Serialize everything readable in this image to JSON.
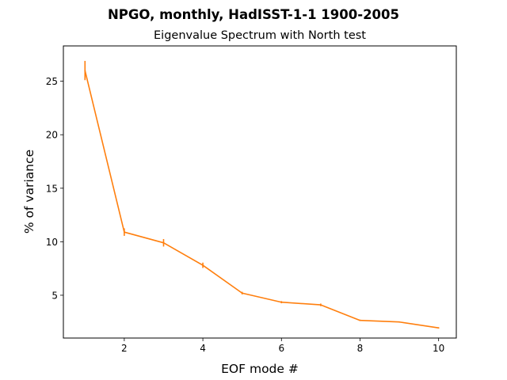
{
  "chart_data": {
    "type": "line",
    "title": "NPGO, monthly, HadISST-1-1 1900-2005",
    "subtitle": "Eigenvalue Spectrum with North test",
    "xlabel": "EOF mode #",
    "ylabel": "% of variance",
    "xlim": [
      0.45,
      10.45
    ],
    "ylim": [
      1.0,
      28.3
    ],
    "xticks": [
      2,
      4,
      6,
      8,
      10
    ],
    "yticks": [
      5,
      10,
      15,
      20,
      25
    ],
    "grid": false,
    "series": [
      {
        "color": "#ff7f0e",
        "x": [
          1,
          2,
          3,
          4,
          5,
          6,
          7,
          8,
          9,
          10
        ],
        "values": [
          26.0,
          10.9,
          9.9,
          7.8,
          5.2,
          4.35,
          4.1,
          2.65,
          2.5,
          1.95
        ],
        "errors": [
          0.9,
          0.35,
          0.35,
          0.25,
          0.12,
          0.1,
          0.12,
          0.06,
          0.05,
          0.04
        ]
      }
    ]
  }
}
